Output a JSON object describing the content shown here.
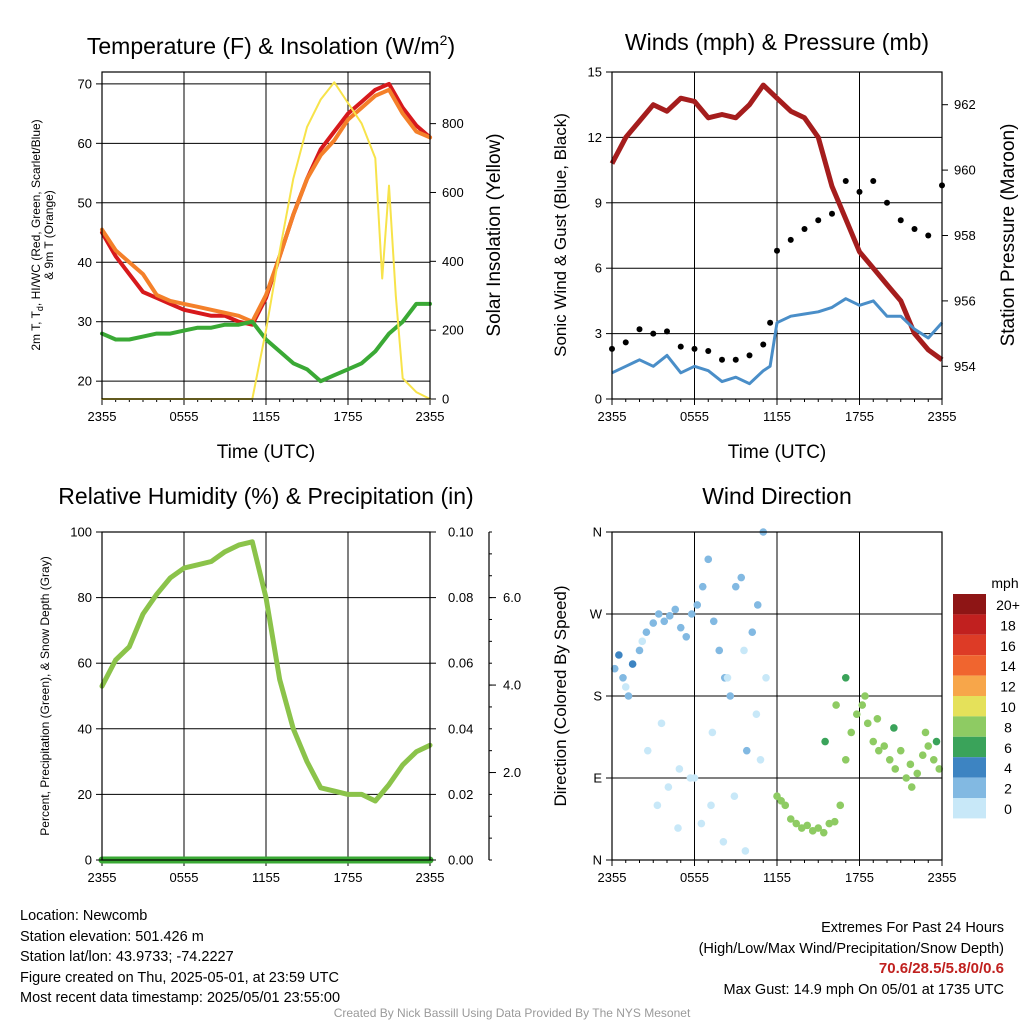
{
  "chart_data": [
    {
      "id": "temp",
      "type": "line",
      "title": "Temperature (F) & Insolation (W/m²)",
      "title_main": "Temperature (F) & Insolation (W/m",
      "title_sup": "2",
      "title_close": ")",
      "xlabel": "Time (UTC)",
      "ylabel_lines": [
        "2m T, Tₐ, HI/WC (Red, Green, Scarlet/Blue)",
        "& 9m T (Orange)"
      ],
      "ylabel_lines_display": [
        "2m T, T",
        "d",
        ", HI/WC (Red, Green, Scarlet/Blue)",
        "& 9m T (Orange)"
      ],
      "y2label": "Solar Insolation (Yellow)",
      "x_ticks": [
        "2355",
        "0555",
        "1155",
        "1755",
        "2355"
      ],
      "ylim": [
        17,
        72
      ],
      "y_ticks": [
        20,
        30,
        40,
        50,
        60,
        70
      ],
      "y2lim": [
        0,
        950
      ],
      "y2_ticks": [
        0,
        200,
        400,
        600,
        800
      ],
      "grid": true,
      "series": [
        {
          "name": "2m T",
          "color": "#d7191c",
          "x": [
            0,
            1,
            2,
            3,
            4,
            5,
            6,
            7,
            8,
            9,
            10,
            11,
            12,
            13,
            14,
            15,
            16,
            17,
            18,
            19,
            20,
            21,
            22,
            23,
            24
          ],
          "values": [
            45,
            41,
            38,
            35,
            34,
            33,
            32,
            31.5,
            31,
            31,
            30,
            29.5,
            34,
            41,
            48,
            54,
            59,
            62,
            65,
            67,
            69,
            70,
            66,
            63,
            61
          ]
        },
        {
          "name": "9m T",
          "color": "#f4802a",
          "x": [
            0,
            1,
            2,
            3,
            4,
            5,
            6,
            7,
            8,
            9,
            10,
            11,
            12,
            13,
            14,
            15,
            16,
            17,
            18,
            19,
            20,
            21,
            22,
            23,
            24
          ],
          "values": [
            45.5,
            42,
            40,
            38,
            34.5,
            33.5,
            33,
            32.5,
            32,
            31.5,
            31,
            30,
            34.5,
            41,
            48,
            54,
            58,
            60.5,
            64,
            66,
            68,
            69,
            65,
            62,
            61
          ]
        },
        {
          "name": "Td",
          "color": "#3aa935",
          "x": [
            0,
            1,
            2,
            3,
            4,
            5,
            6,
            7,
            8,
            9,
            10,
            11,
            12,
            13,
            14,
            15,
            16,
            17,
            18,
            19,
            20,
            21,
            22,
            23,
            24
          ],
          "values": [
            28,
            27,
            27,
            27.5,
            28,
            28,
            28.5,
            29,
            29,
            29.5,
            29.5,
            30,
            27,
            25,
            23,
            22,
            20,
            21,
            22,
            23,
            25,
            28,
            30,
            33,
            33
          ]
        },
        {
          "name": "Insolation",
          "color": "#f7e34a",
          "axis": "right",
          "x": [
            0,
            1,
            2,
            3,
            4,
            5,
            6,
            7,
            8,
            9,
            10,
            11,
            12,
            13,
            14,
            15,
            16,
            17,
            18,
            19,
            20,
            20.5,
            21,
            21.5,
            22,
            23,
            24
          ],
          "values": [
            0,
            0,
            0,
            0,
            0,
            0,
            0,
            0,
            0,
            0,
            0,
            0,
            200,
            430,
            640,
            790,
            870,
            920,
            860,
            800,
            700,
            350,
            620,
            300,
            60,
            20,
            0
          ]
        }
      ]
    },
    {
      "id": "winds",
      "type": "line",
      "title": "Winds (mph) & Pressure (mb)",
      "xlabel": "Time (UTC)",
      "ylabel": "Sonic Wind & Gust (Blue, Black)",
      "y2label": "Station Pressure (Maroon)",
      "x_ticks": [
        "2355",
        "0555",
        "1155",
        "1755",
        "2355"
      ],
      "ylim": [
        0,
        15
      ],
      "y_ticks": [
        0,
        3,
        6,
        9,
        12,
        15
      ],
      "y2lim": [
        953,
        963
      ],
      "y2_ticks": [
        954,
        956,
        958,
        960,
        962
      ],
      "grid": true,
      "series": [
        {
          "name": "Station Pressure",
          "color": "#a51d1d",
          "axis": "right",
          "x": [
            0,
            1,
            2,
            3,
            4,
            5,
            6,
            7,
            8,
            9,
            10,
            11,
            12,
            13,
            14,
            15,
            16,
            17,
            18,
            19,
            20,
            21,
            22,
            23,
            24
          ],
          "values": [
            960.2,
            961,
            961.5,
            962,
            961.8,
            962.2,
            962.1,
            961.6,
            961.7,
            961.6,
            962,
            962.6,
            962.2,
            961.8,
            961.6,
            961,
            959.5,
            958.5,
            957.5,
            957,
            956.5,
            956,
            955,
            954.5,
            954.2
          ]
        },
        {
          "name": "Sonic Wind",
          "color": "#4a8ec8",
          "x": [
            0,
            1,
            2,
            3,
            4,
            5,
            6,
            7,
            8,
            9,
            10,
            11,
            11.5,
            12,
            13,
            14,
            15,
            16,
            17,
            18,
            19,
            20,
            21,
            22,
            23,
            24
          ],
          "values": [
            1.2,
            1.5,
            1.8,
            1.5,
            2,
            1.2,
            1.5,
            1.3,
            0.8,
            1,
            0.7,
            1.3,
            1.5,
            3.5,
            3.8,
            3.9,
            4,
            4.2,
            4.6,
            4.3,
            4.5,
            3.8,
            3.8,
            3.2,
            2.8,
            3.5
          ]
        },
        {
          "name": "Gust",
          "color": "#000000",
          "x": [
            0,
            1,
            2,
            3,
            4,
            5,
            6,
            7,
            8,
            9,
            10,
            11,
            11.5,
            12,
            13,
            14,
            15,
            16,
            17,
            18,
            19,
            20,
            21,
            22,
            23,
            24
          ],
          "values": [
            2.3,
            2.6,
            3.2,
            3,
            3.1,
            2.4,
            2.3,
            2.2,
            1.8,
            1.8,
            2,
            2.5,
            3.5,
            6.8,
            7.3,
            7.8,
            8.2,
            8.5,
            10,
            9.5,
            10,
            9,
            8.2,
            7.8,
            7.5,
            9.8
          ]
        }
      ]
    },
    {
      "id": "rh",
      "type": "line",
      "title": "Relative Humidity (%) & Precipitation (in)",
      "xlabel": "",
      "ylabel": "Percent, Precipitation (Green), & Snow Depth (Gray)",
      "x_ticks": [
        "2355",
        "0555",
        "1155",
        "1755",
        "2355"
      ],
      "ylim": [
        0,
        100
      ],
      "y_ticks": [
        0,
        20,
        40,
        60,
        80,
        100
      ],
      "y2lim": [
        0,
        0.1
      ],
      "y2_ticks": [
        "0.00",
        "0.02",
        "0.04",
        "0.06",
        "0.08",
        "0.10"
      ],
      "y3lim": [
        0,
        7.5
      ],
      "y3_ticks": [
        "2.0",
        "4.0",
        "6.0"
      ],
      "grid": true,
      "series": [
        {
          "name": "RH",
          "color": "#8bc34a",
          "x": [
            0,
            1,
            2,
            3,
            4,
            5,
            6,
            7,
            8,
            9,
            10,
            11,
            12,
            13,
            14,
            15,
            16,
            17,
            18,
            19,
            20,
            21,
            22,
            23,
            24
          ],
          "values": [
            53,
            61,
            65,
            75,
            81,
            86,
            89,
            90,
            91,
            94,
            96,
            97,
            80,
            55,
            40,
            30,
            22,
            21,
            20,
            20,
            18,
            23,
            29,
            33,
            35
          ]
        },
        {
          "name": "Precipitation",
          "color": "#3aa935",
          "x": [
            0,
            24
          ],
          "values": [
            0,
            0
          ]
        }
      ]
    },
    {
      "id": "wdir",
      "type": "scatter",
      "title": "Wind Direction",
      "xlabel": "",
      "ylabel": "Direction (Colored By Speed)",
      "x_ticks": [
        "2355",
        "0555",
        "1155",
        "1755",
        "2355"
      ],
      "y_ticks": [
        "N",
        "E",
        "S",
        "W",
        "N"
      ],
      "ylim": [
        0,
        360
      ],
      "grid": true,
      "legend": {
        "title": "mph",
        "labels": [
          "20+",
          "18",
          "16",
          "14",
          "12",
          "10",
          "8",
          "6",
          "4",
          "2",
          "0"
        ],
        "colors": [
          "#8e1515",
          "#c1201f",
          "#dd3b26",
          "#f0652f",
          "#f7a64a",
          "#e5e15a",
          "#8ecb63",
          "#3aa35a",
          "#3d84c2",
          "#82b9e2",
          "#c8e8f8"
        ]
      },
      "series": [
        {
          "name": "light",
          "x": [
            0.2,
            0.5,
            0.8,
            1.2,
            1.5,
            2,
            2.5,
            3,
            3.4,
            3.8,
            4.2,
            4.6,
            5,
            5.4,
            5.8,
            6.2,
            6.6,
            7,
            7.4,
            7.8,
            8.2,
            8.6,
            9,
            9.4,
            9.8,
            10.2,
            10.6,
            11,
            2.6,
            3.3,
            4.1,
            4.9,
            5.7,
            6.5,
            7.3,
            8.1,
            8.9,
            9.7,
            10.5,
            11.2,
            1,
            2.2,
            3.6,
            4.8,
            6,
            7.2,
            8.4,
            9.6,
            10.8
          ],
          "values": [
            210,
            225,
            200,
            180,
            215,
            230,
            250,
            260,
            270,
            262,
            268,
            275,
            255,
            245,
            270,
            280,
            300,
            330,
            262,
            230,
            200,
            180,
            300,
            310,
            120,
            250,
            280,
            360,
            120,
            60,
            80,
            100,
            90,
            40,
            140,
            20,
            70,
            10,
            160,
            200,
            190,
            240,
            150,
            35,
            90,
            60,
            200,
            230,
            110
          ],
          "color_level": [
            1,
            2,
            1,
            1,
            2,
            1,
            1,
            1,
            1,
            1,
            1,
            1,
            1,
            1,
            1,
            1,
            1,
            1,
            1,
            1,
            1,
            1,
            1,
            1,
            1,
            1,
            1,
            1,
            0,
            0,
            0,
            0,
            0,
            0,
            0,
            0,
            0,
            0,
            0,
            0,
            0,
            0,
            0,
            0,
            0,
            0,
            0,
            0,
            0
          ]
        },
        {
          "name": "moderate",
          "x": [
            12,
            12.3,
            12.6,
            13,
            13.4,
            13.8,
            14.2,
            14.6,
            15,
            15.4,
            15.8,
            16.2,
            16.6,
            17,
            17.4,
            17.8,
            18.2,
            18.6,
            19,
            19.4,
            19.8,
            20.2,
            20.6,
            21,
            21.4,
            21.8,
            22.2,
            22.6,
            23,
            23.4,
            23.8,
            15.5,
            16.3,
            17,
            18.4,
            19.3,
            20.5,
            21.7,
            22.8,
            23.6
          ],
          "values": [
            70,
            65,
            60,
            45,
            40,
            35,
            38,
            32,
            35,
            30,
            40,
            42,
            60,
            110,
            140,
            160,
            170,
            150,
            130,
            120,
            125,
            110,
            100,
            120,
            90,
            80,
            95,
            115,
            125,
            110,
            100,
            130,
            170,
            200,
            180,
            155,
            145,
            105,
            140,
            130
          ],
          "color_level": [
            4,
            4,
            4,
            4,
            4,
            4,
            4,
            4,
            4,
            4,
            4,
            4,
            4,
            4,
            4,
            4,
            4,
            4,
            4,
            4,
            4,
            4,
            4,
            4,
            4,
            4,
            4,
            4,
            4,
            4,
            4,
            3,
            4,
            3,
            4,
            4,
            3,
            4,
            4,
            3
          ]
        }
      ]
    }
  ],
  "info_left": [
    "Location: Newcomb",
    "Station elevation: 501.426 m",
    "Station lat/lon: 43.9733; -74.2227",
    "Figure created on Thu, 2025-05-01, at 23:59 UTC",
    "Most recent data timestamp: 2025/05/01 23:55:00"
  ],
  "extremes_title": "Extremes For Past 24 Hours",
  "extremes_subtitle": "(High/Low/Max Wind/Precipitation/Snow Depth)",
  "extremes_values": "70.6/28.5/5.8/0/0.6",
  "max_gust": "Max Gust: 14.9 mph On 05/01 at 1735 UTC",
  "credit": "Created By Nick Bassill Using Data Provided By The NYS Mesonet"
}
